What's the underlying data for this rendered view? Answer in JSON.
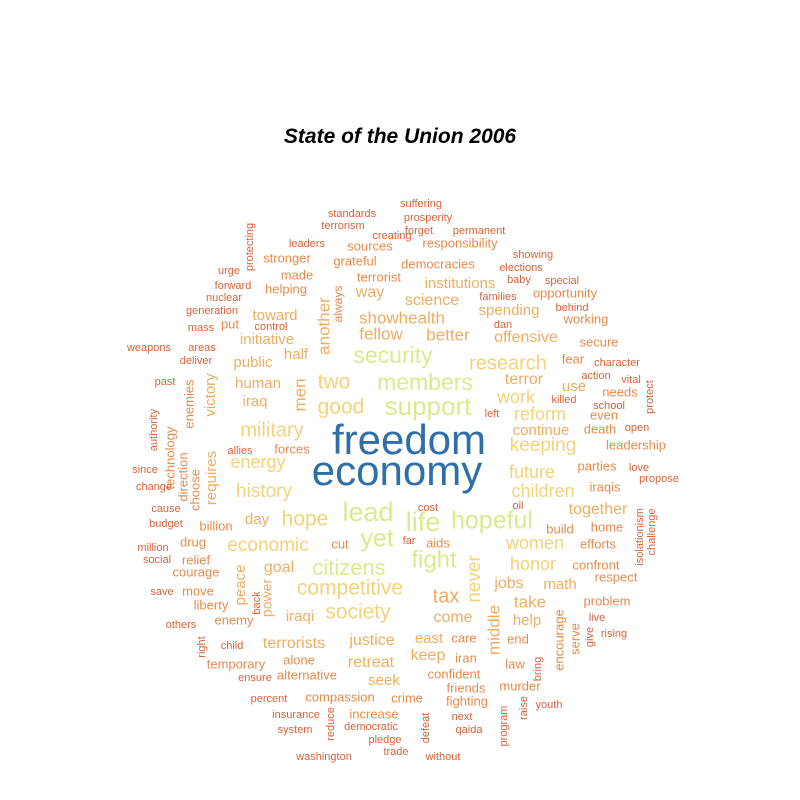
{
  "chart_data": {
    "type": "wordcloud",
    "title": "State of the Union 2006",
    "palette": {
      "1": "#d9623b",
      "2": "#e98a4a",
      "3": "#efad62",
      "4": "#f3d27a",
      "5": "#dde98e",
      "9": "#2f6fa8"
    },
    "words": [
      {
        "text": "freedom",
        "freq": 10,
        "tier": 9
      },
      {
        "text": "economy",
        "freq": 10,
        "tier": 9
      },
      {
        "text": "security",
        "freq": 6,
        "tier": 5
      },
      {
        "text": "support",
        "freq": 6,
        "tier": 5
      },
      {
        "text": "members",
        "freq": 6,
        "tier": 5
      },
      {
        "text": "lead",
        "freq": 6,
        "tier": 5
      },
      {
        "text": "life",
        "freq": 6,
        "tier": 5
      },
      {
        "text": "yet",
        "freq": 6,
        "tier": 5
      },
      {
        "text": "hopeful",
        "freq": 6,
        "tier": 5
      },
      {
        "text": "fight",
        "freq": 5,
        "tier": 5
      },
      {
        "text": "citizens",
        "freq": 5,
        "tier": 5
      },
      {
        "text": "competitive",
        "freq": 5,
        "tier": 4
      },
      {
        "text": "society",
        "freq": 5,
        "tier": 4
      },
      {
        "text": "hope",
        "freq": 5,
        "tier": 4
      },
      {
        "text": "good",
        "freq": 5,
        "tier": 4
      },
      {
        "text": "two",
        "freq": 5,
        "tier": 4
      },
      {
        "text": "research",
        "freq": 5,
        "tier": 4
      },
      {
        "text": "military",
        "freq": 5,
        "tier": 4
      },
      {
        "text": "energy",
        "freq": 5,
        "tier": 4
      },
      {
        "text": "history",
        "freq": 5,
        "tier": 4
      },
      {
        "text": "economic",
        "freq": 5,
        "tier": 4
      },
      {
        "text": "work",
        "freq": 5,
        "tier": 4
      },
      {
        "text": "reform",
        "freq": 5,
        "tier": 4
      },
      {
        "text": "keeping",
        "freq": 5,
        "tier": 4
      },
      {
        "text": "future",
        "freq": 5,
        "tier": 4
      },
      {
        "text": "children",
        "freq": 5,
        "tier": 4
      },
      {
        "text": "together",
        "freq": 4,
        "tier": 3
      },
      {
        "text": "women",
        "freq": 5,
        "tier": 4
      },
      {
        "text": "honor",
        "freq": 5,
        "tier": 4
      },
      {
        "text": "tax",
        "freq": 5,
        "tier": 3
      },
      {
        "text": "never",
        "freq": 5,
        "tier": 4
      },
      {
        "text": "middle",
        "freq": 4,
        "tier": 3
      },
      {
        "text": "another",
        "freq": 4,
        "tier": 3
      },
      {
        "text": "men",
        "freq": 4,
        "tier": 3
      },
      {
        "text": "showhealth",
        "freq": 4,
        "tier": 3
      },
      {
        "text": "fellow",
        "freq": 4,
        "tier": 3
      },
      {
        "text": "better",
        "freq": 4,
        "tier": 3
      },
      {
        "text": "offensive",
        "freq": 4,
        "tier": 3
      },
      {
        "text": "science",
        "freq": 4,
        "tier": 3
      },
      {
        "text": "way",
        "freq": 4,
        "tier": 3
      },
      {
        "text": "spending",
        "freq": 4,
        "tier": 3
      },
      {
        "text": "institutions",
        "freq": 4,
        "tier": 3
      },
      {
        "text": "terror",
        "freq": 4,
        "tier": 3
      },
      {
        "text": "continue",
        "freq": 4,
        "tier": 3
      },
      {
        "text": "human",
        "freq": 4,
        "tier": 3
      },
      {
        "text": "iraq",
        "freq": 4,
        "tier": 3
      },
      {
        "text": "half",
        "freq": 4,
        "tier": 3
      },
      {
        "text": "initiative",
        "freq": 4,
        "tier": 3
      },
      {
        "text": "toward",
        "freq": 4,
        "tier": 3
      },
      {
        "text": "public",
        "freq": 4,
        "tier": 3
      },
      {
        "text": "victory",
        "freq": 4,
        "tier": 3
      },
      {
        "text": "requires",
        "freq": 4,
        "tier": 3
      },
      {
        "text": "day",
        "freq": 4,
        "tier": 3
      },
      {
        "text": "goal",
        "freq": 4,
        "tier": 3
      },
      {
        "text": "peace",
        "freq": 4,
        "tier": 3
      },
      {
        "text": "power",
        "freq": 4,
        "tier": 3
      },
      {
        "text": "iraqi",
        "freq": 4,
        "tier": 3
      },
      {
        "text": "jobs",
        "freq": 4,
        "tier": 3
      },
      {
        "text": "take",
        "freq": 4,
        "tier": 3
      },
      {
        "text": "math",
        "freq": 4,
        "tier": 3
      },
      {
        "text": "help",
        "freq": 4,
        "tier": 3
      },
      {
        "text": "come",
        "freq": 4,
        "tier": 3
      },
      {
        "text": "justice",
        "freq": 4,
        "tier": 3
      },
      {
        "text": "terrorists",
        "freq": 4,
        "tier": 3
      },
      {
        "text": "east",
        "freq": 4,
        "tier": 3
      },
      {
        "text": "keep",
        "freq": 4,
        "tier": 3
      },
      {
        "text": "retreat",
        "freq": 4,
        "tier": 3
      },
      {
        "text": "seek",
        "freq": 4,
        "tier": 3
      },
      {
        "text": "use",
        "freq": 4,
        "tier": 3
      },
      {
        "text": "terrorist",
        "freq": 3,
        "tier": 2
      },
      {
        "text": "always",
        "freq": 3,
        "tier": 2
      },
      {
        "text": "responsibility",
        "freq": 3,
        "tier": 2
      },
      {
        "text": "democracies",
        "freq": 3,
        "tier": 2
      },
      {
        "text": "grateful",
        "freq": 3,
        "tier": 2
      },
      {
        "text": "sources",
        "freq": 3,
        "tier": 2
      },
      {
        "text": "stronger",
        "freq": 3,
        "tier": 2
      },
      {
        "text": "made",
        "freq": 3,
        "tier": 2
      },
      {
        "text": "helping",
        "freq": 3,
        "tier": 2
      },
      {
        "text": "put",
        "freq": 3,
        "tier": 2
      },
      {
        "text": "opportunity",
        "freq": 3,
        "tier": 2
      },
      {
        "text": "working",
        "freq": 3,
        "tier": 2
      },
      {
        "text": "secure",
        "freq": 3,
        "tier": 2
      },
      {
        "text": "fear",
        "freq": 3,
        "tier": 2
      },
      {
        "text": "needs",
        "freq": 3,
        "tier": 2
      },
      {
        "text": "even",
        "freq": 3,
        "tier": 2
      },
      {
        "text": "death",
        "freq": 3,
        "tier": 2
      },
      {
        "text": "leadership",
        "freq": 3,
        "tier": 2
      },
      {
        "text": "parties",
        "freq": 3,
        "tier": 2
      },
      {
        "text": "iraqis",
        "freq": 3,
        "tier": 2
      },
      {
        "text": "build",
        "freq": 3,
        "tier": 2
      },
      {
        "text": "home",
        "freq": 3,
        "tier": 2
      },
      {
        "text": "efforts",
        "freq": 3,
        "tier": 2
      },
      {
        "text": "confront",
        "freq": 3,
        "tier": 2
      },
      {
        "text": "respect",
        "freq": 3,
        "tier": 2
      },
      {
        "text": "problem",
        "freq": 3,
        "tier": 2
      },
      {
        "text": "encourage",
        "freq": 3,
        "tier": 2
      },
      {
        "text": "serve",
        "freq": 3,
        "tier": 2
      },
      {
        "text": "end",
        "freq": 3,
        "tier": 2
      },
      {
        "text": "law",
        "freq": 3,
        "tier": 2
      },
      {
        "text": "care",
        "freq": 3,
        "tier": 2
      },
      {
        "text": "iran",
        "freq": 3,
        "tier": 2
      },
      {
        "text": "confident",
        "freq": 3,
        "tier": 2
      },
      {
        "text": "friends",
        "freq": 3,
        "tier": 2
      },
      {
        "text": "murder",
        "freq": 3,
        "tier": 2
      },
      {
        "text": "fighting",
        "freq": 3,
        "tier": 2
      },
      {
        "text": "aids",
        "freq": 3,
        "tier": 2
      },
      {
        "text": "cut",
        "freq": 3,
        "tier": 2
      },
      {
        "text": "crime",
        "freq": 3,
        "tier": 2
      },
      {
        "text": "compassion",
        "freq": 3,
        "tier": 2
      },
      {
        "text": "increase",
        "freq": 3,
        "tier": 2
      },
      {
        "text": "alternative",
        "freq": 3,
        "tier": 2
      },
      {
        "text": "alone",
        "freq": 3,
        "tier": 2
      },
      {
        "text": "temporary",
        "freq": 3,
        "tier": 2
      },
      {
        "text": "enemy",
        "freq": 3,
        "tier": 2
      },
      {
        "text": "liberty",
        "freq": 3,
        "tier": 2
      },
      {
        "text": "move",
        "freq": 3,
        "tier": 2
      },
      {
        "text": "courage",
        "freq": 3,
        "tier": 2
      },
      {
        "text": "relief",
        "freq": 3,
        "tier": 2
      },
      {
        "text": "drug",
        "freq": 3,
        "tier": 2
      },
      {
        "text": "billion",
        "freq": 3,
        "tier": 2
      },
      {
        "text": "forces",
        "freq": 3,
        "tier": 2
      },
      {
        "text": "enemies",
        "freq": 3,
        "tier": 2
      },
      {
        "text": "choose",
        "freq": 3,
        "tier": 2
      },
      {
        "text": "direction",
        "freq": 3,
        "tier": 2
      },
      {
        "text": "technology",
        "freq": 3,
        "tier": 2
      },
      {
        "text": "back",
        "freq": 2,
        "tier": 1
      },
      {
        "text": "suffering",
        "freq": 2,
        "tier": 1
      },
      {
        "text": "standards",
        "freq": 2,
        "tier": 1
      },
      {
        "text": "prosperity",
        "freq": 2,
        "tier": 1
      },
      {
        "text": "terrorism",
        "freq": 2,
        "tier": 1
      },
      {
        "text": "creating",
        "freq": 2,
        "tier": 1
      },
      {
        "text": "forget",
        "freq": 2,
        "tier": 1
      },
      {
        "text": "permanent",
        "freq": 2,
        "tier": 1
      },
      {
        "text": "protecting",
        "freq": 2,
        "tier": 1
      },
      {
        "text": "leaders",
        "freq": 2,
        "tier": 1
      },
      {
        "text": "showing",
        "freq": 2,
        "tier": 1
      },
      {
        "text": "urge",
        "freq": 2,
        "tier": 1
      },
      {
        "text": "elections",
        "freq": 2,
        "tier": 1
      },
      {
        "text": "baby",
        "freq": 2,
        "tier": 1
      },
      {
        "text": "special",
        "freq": 2,
        "tier": 1
      },
      {
        "text": "forward",
        "freq": 2,
        "tier": 1
      },
      {
        "text": "nuclear",
        "freq": 2,
        "tier": 1
      },
      {
        "text": "families",
        "freq": 2,
        "tier": 1
      },
      {
        "text": "generation",
        "freq": 2,
        "tier": 1
      },
      {
        "text": "behind",
        "freq": 2,
        "tier": 1
      },
      {
        "text": "dan",
        "freq": 2,
        "tier": 1
      },
      {
        "text": "mass",
        "freq": 2,
        "tier": 1
      },
      {
        "text": "control",
        "freq": 2,
        "tier": 1
      },
      {
        "text": "weapons",
        "freq": 2,
        "tier": 1
      },
      {
        "text": "areas",
        "freq": 2,
        "tier": 1
      },
      {
        "text": "deliver",
        "freq": 2,
        "tier": 1
      },
      {
        "text": "character",
        "freq": 2,
        "tier": 1
      },
      {
        "text": "action",
        "freq": 2,
        "tier": 1
      },
      {
        "text": "vital",
        "freq": 2,
        "tier": 1
      },
      {
        "text": "past",
        "freq": 2,
        "tier": 1
      },
      {
        "text": "killed",
        "freq": 2,
        "tier": 1
      },
      {
        "text": "school",
        "freq": 2,
        "tier": 1
      },
      {
        "text": "protect",
        "freq": 2,
        "tier": 1
      },
      {
        "text": "authority",
        "freq": 2,
        "tier": 1
      },
      {
        "text": "left",
        "freq": 2,
        "tier": 1
      },
      {
        "text": "open",
        "freq": 2,
        "tier": 1
      },
      {
        "text": "allies",
        "freq": 2,
        "tier": 1
      },
      {
        "text": "since",
        "freq": 2,
        "tier": 1
      },
      {
        "text": "love",
        "freq": 2,
        "tier": 1
      },
      {
        "text": "propose",
        "freq": 2,
        "tier": 1
      },
      {
        "text": "change",
        "freq": 2,
        "tier": 1
      },
      {
        "text": "cause",
        "freq": 2,
        "tier": 1
      },
      {
        "text": "oil",
        "freq": 2,
        "tier": 1
      },
      {
        "text": "cost",
        "freq": 2,
        "tier": 1
      },
      {
        "text": "budget",
        "freq": 2,
        "tier": 1
      },
      {
        "text": "isolationism",
        "freq": 2,
        "tier": 1
      },
      {
        "text": "challenge",
        "freq": 2,
        "tier": 1
      },
      {
        "text": "far",
        "freq": 2,
        "tier": 1
      },
      {
        "text": "million",
        "freq": 2,
        "tier": 1
      },
      {
        "text": "social",
        "freq": 2,
        "tier": 1
      },
      {
        "text": "save",
        "freq": 2,
        "tier": 1
      },
      {
        "text": "others",
        "freq": 2,
        "tier": 1
      },
      {
        "text": "right",
        "freq": 2,
        "tier": 1
      },
      {
        "text": "live",
        "freq": 2,
        "tier": 1
      },
      {
        "text": "give",
        "freq": 2,
        "tier": 1
      },
      {
        "text": "rising",
        "freq": 2,
        "tier": 1
      },
      {
        "text": "child",
        "freq": 2,
        "tier": 1
      },
      {
        "text": "bring",
        "freq": 2,
        "tier": 1
      },
      {
        "text": "ensure",
        "freq": 2,
        "tier": 1
      },
      {
        "text": "percent",
        "freq": 2,
        "tier": 1
      },
      {
        "text": "raise",
        "freq": 2,
        "tier": 1
      },
      {
        "text": "youth",
        "freq": 2,
        "tier": 1
      },
      {
        "text": "insurance",
        "freq": 2,
        "tier": 1
      },
      {
        "text": "reduce",
        "freq": 2,
        "tier": 1
      },
      {
        "text": "democratic",
        "freq": 2,
        "tier": 1
      },
      {
        "text": "next",
        "freq": 2,
        "tier": 1
      },
      {
        "text": "system",
        "freq": 2,
        "tier": 1
      },
      {
        "text": "pledge",
        "freq": 2,
        "tier": 1
      },
      {
        "text": "defeat",
        "freq": 2,
        "tier": 1
      },
      {
        "text": "qaida",
        "freq": 2,
        "tier": 1
      },
      {
        "text": "program",
        "freq": 2,
        "tier": 1
      },
      {
        "text": "washington",
        "freq": 2,
        "tier": 1
      },
      {
        "text": "trade",
        "freq": 2,
        "tier": 1
      },
      {
        "text": "without",
        "freq": 2,
        "tier": 1
      }
    ]
  }
}
